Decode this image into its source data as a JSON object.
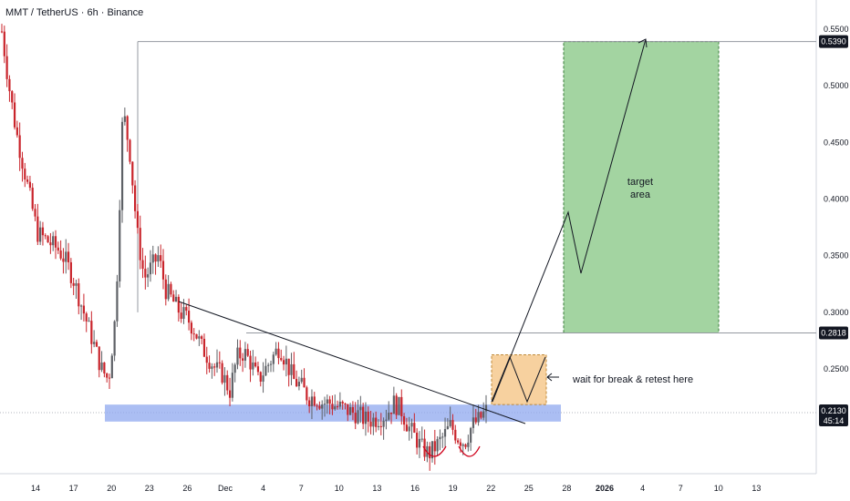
{
  "header": {
    "title": "MMT / TetherUS · 6h · Binance"
  },
  "colors": {
    "up": "#5e6166",
    "down": "#c9242b",
    "support_zone": "#8fa8ef",
    "target_zone": "#8cc98a",
    "retest_zone": "#f6c98e",
    "badge": "#131722",
    "axis_text": "#131722"
  },
  "chart_data": {
    "type": "candlestick",
    "title": "MMT / TetherUS · 6h · Binance",
    "y_ticks": [
      "0.5500",
      "0.5000",
      "0.4500",
      "0.4000",
      "0.3500",
      "0.3000",
      "0.2500"
    ],
    "ylim": [
      0.125,
      0.565
    ],
    "x_ticks": [
      "14",
      "17",
      "20",
      "23",
      "26",
      "Dec",
      "4",
      "7",
      "10",
      "13",
      "16",
      "19",
      "22",
      "25",
      "28",
      "2026",
      "4",
      "7",
      "10",
      "13"
    ],
    "price_badges": [
      {
        "label": "0.5390",
        "value": 0.539
      },
      {
        "label": "0.2818",
        "value": 0.2818
      },
      {
        "label": "0.2130",
        "value": 0.213,
        "sub": "45:14"
      }
    ],
    "current_price": 0.213,
    "support_zone": {
      "low": 0.2035,
      "high": 0.2185
    },
    "target_zone": {
      "low": 0.2818,
      "high": 0.539
    },
    "retest_zone": {
      "low": 0.2185,
      "high": 0.2625
    },
    "annotations": [
      "wait for break & retest here",
      "target",
      "area"
    ],
    "close_path": [
      0.548,
      0.5,
      0.46,
      0.43,
      0.4,
      0.37,
      0.365,
      0.36,
      0.355,
      0.345,
      0.33,
      0.31,
      0.29,
      0.27,
      0.25,
      0.24,
      0.3,
      0.48,
      0.44,
      0.37,
      0.33,
      0.34,
      0.35,
      0.32,
      0.31,
      0.3,
      0.295,
      0.285,
      0.27,
      0.26,
      0.25,
      0.245,
      0.23,
      0.26,
      0.265,
      0.255,
      0.24,
      0.25,
      0.26,
      0.27,
      0.255,
      0.24,
      0.235,
      0.225,
      0.225,
      0.22,
      0.22,
      0.217,
      0.215,
      0.212,
      0.21,
      0.205,
      0.205,
      0.207,
      0.21,
      0.22,
      0.215,
      0.2,
      0.19,
      0.18,
      0.175,
      0.182,
      0.19,
      0.2,
      0.19,
      0.185,
      0.2,
      0.205,
      0.213
    ]
  },
  "notes": {
    "retest": "wait for break & retest here",
    "target_line1": "target",
    "target_line2": "area"
  }
}
